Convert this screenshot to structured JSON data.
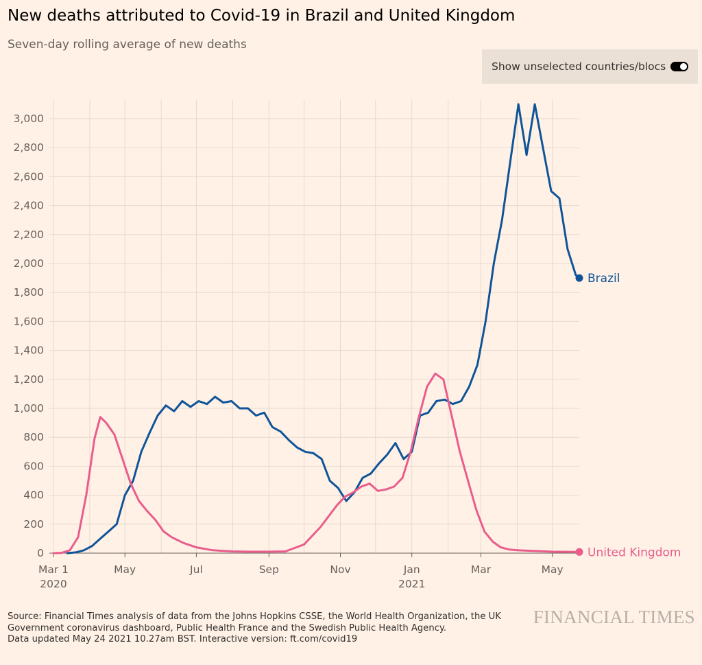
{
  "header": {
    "title": "New deaths attributed to Covid-19 in Brazil and United Kingdom",
    "subtitle": "Seven-day rolling average of new deaths"
  },
  "toggle": {
    "label": "Show unselected countries/blocs",
    "on": true
  },
  "footer": {
    "source_line1": "Source: Financial Times analysis of data from the Johns Hopkins CSSE, the World Health Organization, the UK",
    "source_line2": "Government coronavirus dashboard, Public Health France and the Swedish Public Health Agency.",
    "updated": "Data updated May 24 2021 10.27am BST. Interactive version: ft.com/covid19",
    "logo": "FINANCIAL TIMES"
  },
  "chart_data": {
    "type": "line",
    "x_unit": "date",
    "xlim": [
      "2020-03-01",
      "2021-05-24"
    ],
    "ylim": [
      0,
      3150
    ],
    "grid": true,
    "y_ticks": [
      0,
      200,
      400,
      600,
      800,
      1000,
      1200,
      1400,
      1600,
      1800,
      2000,
      2200,
      2400,
      2600,
      2800,
      3000
    ],
    "y_tick_labels": [
      "0",
      "200",
      "400",
      "600",
      "800",
      "1,000",
      "1,200",
      "1,400",
      "1,600",
      "1,800",
      "2,000",
      "2,200",
      "2,400",
      "2,600",
      "2,800",
      "3,000"
    ],
    "x_ticks": [
      {
        "date": "2020-03-01",
        "label": "Mar 1",
        "sublabel": "2020"
      },
      {
        "date": "2020-05-01",
        "label": "May",
        "sublabel": ""
      },
      {
        "date": "2020-07-01",
        "label": "Jul",
        "sublabel": ""
      },
      {
        "date": "2020-09-01",
        "label": "Sep",
        "sublabel": ""
      },
      {
        "date": "2020-11-01",
        "label": "Nov",
        "sublabel": ""
      },
      {
        "date": "2021-01-01",
        "label": "Jan",
        "sublabel": "2021"
      },
      {
        "date": "2021-03-01",
        "label": "Mar",
        "sublabel": ""
      },
      {
        "date": "2021-05-01",
        "label": "May",
        "sublabel": ""
      }
    ],
    "extra_grid_dates": [
      "2020-04-01",
      "2020-06-01",
      "2020-08-01",
      "2020-10-01",
      "2020-12-01",
      "2021-02-01",
      "2021-04-01"
    ],
    "series": [
      {
        "name": "Brazil",
        "color": "#0f5499",
        "x": [
          "2020-03-13",
          "2020-03-20",
          "2020-03-27",
          "2020-04-03",
          "2020-04-10",
          "2020-04-17",
          "2020-04-24",
          "2020-05-01",
          "2020-05-08",
          "2020-05-15",
          "2020-05-22",
          "2020-05-29",
          "2020-06-05",
          "2020-06-12",
          "2020-06-19",
          "2020-06-26",
          "2020-07-03",
          "2020-07-10",
          "2020-07-17",
          "2020-07-24",
          "2020-07-31",
          "2020-08-07",
          "2020-08-14",
          "2020-08-21",
          "2020-08-28",
          "2020-09-04",
          "2020-09-11",
          "2020-09-18",
          "2020-09-25",
          "2020-10-02",
          "2020-10-09",
          "2020-10-16",
          "2020-10-23",
          "2020-10-30",
          "2020-11-06",
          "2020-11-13",
          "2020-11-20",
          "2020-11-27",
          "2020-12-04",
          "2020-12-11",
          "2020-12-18",
          "2020-12-25",
          "2021-01-01",
          "2021-01-08",
          "2021-01-15",
          "2021-01-22",
          "2021-01-29",
          "2021-02-05",
          "2021-02-12",
          "2021-02-19",
          "2021-02-26",
          "2021-03-05",
          "2021-03-12",
          "2021-03-19",
          "2021-03-26",
          "2021-04-02",
          "2021-04-09",
          "2021-04-16",
          "2021-04-23",
          "2021-04-30",
          "2021-05-07",
          "2021-05-14",
          "2021-05-21",
          "2021-05-24"
        ],
        "y": [
          0,
          5,
          20,
          50,
          100,
          150,
          200,
          400,
          500,
          700,
          830,
          950,
          1020,
          980,
          1050,
          1010,
          1050,
          1030,
          1080,
          1040,
          1050,
          1000,
          1000,
          950,
          970,
          870,
          840,
          780,
          730,
          700,
          690,
          650,
          500,
          450,
          360,
          420,
          520,
          550,
          620,
          680,
          760,
          650,
          700,
          950,
          970,
          1050,
          1060,
          1030,
          1050,
          1150,
          1300,
          1600,
          2000,
          2300,
          2700,
          3100,
          2750,
          3100,
          2800,
          2500,
          2450,
          2100,
          1920,
          1900
        ]
      },
      {
        "name": "United Kingdom",
        "color": "#e95d8c",
        "x": [
          "2020-03-01",
          "2020-03-08",
          "2020-03-15",
          "2020-03-22",
          "2020-03-29",
          "2020-04-05",
          "2020-04-10",
          "2020-04-15",
          "2020-04-22",
          "2020-04-29",
          "2020-05-06",
          "2020-05-13",
          "2020-05-20",
          "2020-05-27",
          "2020-06-03",
          "2020-06-10",
          "2020-06-20",
          "2020-07-01",
          "2020-07-15",
          "2020-08-01",
          "2020-08-15",
          "2020-09-01",
          "2020-09-15",
          "2020-10-01",
          "2020-10-15",
          "2020-10-29",
          "2020-11-05",
          "2020-11-12",
          "2020-11-19",
          "2020-11-26",
          "2020-12-03",
          "2020-12-10",
          "2020-12-17",
          "2020-12-24",
          "2020-12-31",
          "2021-01-07",
          "2021-01-14",
          "2021-01-21",
          "2021-01-28",
          "2021-02-04",
          "2021-02-11",
          "2021-02-18",
          "2021-02-25",
          "2021-03-04",
          "2021-03-11",
          "2021-03-18",
          "2021-03-25",
          "2021-04-01",
          "2021-04-15",
          "2021-05-01",
          "2021-05-24"
        ],
        "y": [
          0,
          2,
          20,
          110,
          400,
          790,
          940,
          900,
          820,
          650,
          480,
          360,
          290,
          230,
          150,
          110,
          70,
          40,
          20,
          12,
          10,
          10,
          12,
          60,
          180,
          330,
          390,
          420,
          460,
          480,
          430,
          440,
          460,
          520,
          700,
          940,
          1150,
          1240,
          1200,
          950,
          700,
          500,
          300,
          150,
          80,
          40,
          25,
          20,
          15,
          10,
          8
        ]
      }
    ]
  }
}
